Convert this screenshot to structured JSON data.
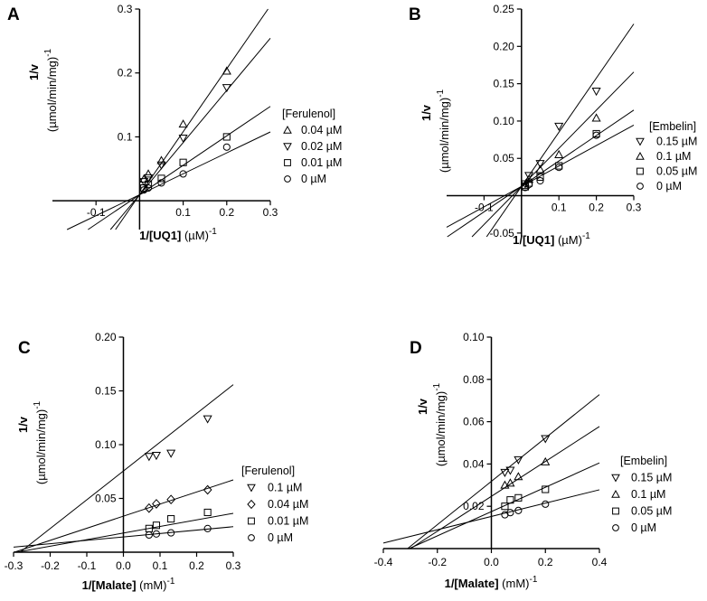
{
  "chart_data": [
    {
      "panel": "A",
      "type": "scatter",
      "xlabel_bold": "1/[UQ1]",
      "xlabel_rest": " (µM)",
      "xlabel_exp": "-1",
      "ylabel_top": "1/v",
      "ylabel_bottom": "(µmol/min/mg)",
      "ylabel_exp": "-1",
      "xlim": [
        -0.2,
        0.3
      ],
      "ylim": [
        -0.045,
        0.3
      ],
      "xticks": [
        -0.1,
        0.1,
        0.2,
        0.3
      ],
      "xtick_labels": [
        "-0.1",
        "0.1",
        "0.2",
        "0.3"
      ],
      "yticks": [
        0.1,
        0.2,
        0.3
      ],
      "ytick_labels": [
        "0.1",
        "0.2",
        "0.3"
      ],
      "legend_title": "[Ferulenol]",
      "series": [
        {
          "name": "0.04 µM",
          "marker": "triangle-up",
          "x": [
            0.01,
            0.02,
            0.05,
            0.1,
            0.2
          ],
          "y": [
            0.034,
            0.042,
            0.063,
            0.12,
            0.203
          ],
          "line": [
            0.9855,
            0.0095
          ]
        },
        {
          "name": "0.02 µM",
          "marker": "triangle-down",
          "x": [
            0.01,
            0.02,
            0.05,
            0.1,
            0.2
          ],
          "y": [
            0.03,
            0.036,
            0.056,
            0.098,
            0.177
          ],
          "line": [
            0.816,
            0.0095
          ]
        },
        {
          "name": "0.01 µM",
          "marker": "square",
          "x": [
            0.01,
            0.02,
            0.05,
            0.1,
            0.2
          ],
          "y": [
            0.02,
            0.026,
            0.035,
            0.06,
            0.1
          ],
          "line": [
            0.4605,
            0.0095
          ]
        },
        {
          "name": "0 µM",
          "marker": "circle",
          "x": [
            0.01,
            0.02,
            0.05,
            0.1,
            0.2
          ],
          "y": [
            0.017,
            0.02,
            0.028,
            0.042,
            0.084
          ],
          "line": [
            0.3274,
            0.0095
          ]
        }
      ]
    },
    {
      "panel": "B",
      "type": "scatter",
      "xlabel_bold": "1/[UQ1]",
      "xlabel_rest": " (µM)",
      "xlabel_exp": "-1",
      "ylabel_top": "1/v",
      "ylabel_bottom": "(µmol/min/mg)",
      "ylabel_exp": "-1",
      "xlim": [
        -0.2,
        0.3
      ],
      "ylim": [
        -0.055,
        0.25
      ],
      "xticks": [
        -0.1,
        0.1,
        0.2,
        0.3
      ],
      "xtick_labels": [
        "-0.1",
        "0.1",
        "0.2",
        "0.3"
      ],
      "yticks": [
        -0.05,
        0.05,
        0.1,
        0.15,
        0.2,
        0.25
      ],
      "ytick_labels": [
        "-0.05",
        "0.05",
        "0.10",
        "0.15",
        "0.20",
        "0.25"
      ],
      "legend_title": "[Embelin]",
      "series": [
        {
          "name": "0.15 µM",
          "marker": "triangle-down",
          "x": [
            0.01,
            0.02,
            0.05,
            0.1,
            0.2
          ],
          "y": [
            0.016,
            0.027,
            0.043,
            0.093,
            0.14
          ],
          "line": [
            0.725,
            0.0125
          ]
        },
        {
          "name": "0.1 µM",
          "marker": "triangle-up",
          "x": [
            0.01,
            0.02,
            0.05,
            0.1,
            0.2
          ],
          "y": [
            0.014,
            0.022,
            0.035,
            0.055,
            0.104
          ],
          "line": [
            0.5105,
            0.0125
          ]
        },
        {
          "name": "0.05 µM",
          "marker": "square",
          "x": [
            0.01,
            0.02,
            0.05,
            0.1,
            0.2
          ],
          "y": [
            0.012,
            0.017,
            0.025,
            0.04,
            0.083
          ],
          "line": [
            0.3405,
            0.0125
          ]
        },
        {
          "name": "0 µM",
          "marker": "circle",
          "x": [
            0.01,
            0.02,
            0.05,
            0.1,
            0.2
          ],
          "y": [
            0.011,
            0.015,
            0.02,
            0.038,
            0.081
          ],
          "line": [
            0.2735,
            0.0125
          ]
        }
      ]
    },
    {
      "panel": "C",
      "type": "scatter",
      "xlabel_bold": "1/[Malate]",
      "xlabel_rest": " (mM)",
      "xlabel_exp": "-1",
      "ylabel_top": "1/v",
      "ylabel_bottom": "(µmol/min/mg)",
      "ylabel_exp": "-1",
      "xlim": [
        -0.3,
        0.3
      ],
      "ylim": [
        0,
        0.2
      ],
      "xticks": [
        -0.3,
        -0.2,
        -0.1,
        0,
        0.1,
        0.2,
        0.3
      ],
      "xtick_labels": [
        "-0.3",
        "-0.2",
        "-0.1",
        "0.0",
        "0.1",
        "0.2",
        "0.3"
      ],
      "yticks": [
        0.05,
        0.1,
        0.15,
        0.2
      ],
      "ytick_labels": [
        "0.05",
        "0.10",
        "0.15",
        "0.20"
      ],
      "legend_title": "[Ferulenol]",
      "series": [
        {
          "name": "0.1 µM",
          "marker": "triangle-down",
          "x": [
            0.07,
            0.09,
            0.13,
            0.23
          ],
          "y": [
            0.089,
            0.09,
            0.092,
            0.124
          ],
          "line": [
            0.2675,
            0.0755
          ]
        },
        {
          "name": "0.04 µM",
          "marker": "diamond",
          "x": [
            0.07,
            0.09,
            0.13,
            0.23
          ],
          "y": [
            0.041,
            0.045,
            0.049,
            0.058
          ],
          "line": [
            0.1125,
            0.0335
          ]
        },
        {
          "name": "0.01 µM",
          "marker": "square",
          "x": [
            0.07,
            0.09,
            0.13,
            0.23
          ],
          "y": [
            0.022,
            0.025,
            0.031,
            0.037
          ],
          "line": [
            0.0611,
            0.0178
          ]
        },
        {
          "name": "0 µM",
          "marker": "circle",
          "x": [
            0.07,
            0.09,
            0.13,
            0.23
          ],
          "y": [
            0.016,
            0.017,
            0.018,
            0.022
          ],
          "line": [
            0.0317,
            0.0142
          ]
        }
      ]
    },
    {
      "panel": "D",
      "type": "scatter",
      "xlabel_bold": "1/[Malate]",
      "xlabel_rest": " (mM)",
      "xlabel_exp": "-1",
      "ylabel_top": "1/v",
      "ylabel_bottom": "(µmol/min/mg)",
      "ylabel_exp": "-1",
      "xlim": [
        -0.4,
        0.4
      ],
      "ylim": [
        0,
        0.1
      ],
      "xticks": [
        -0.4,
        -0.2,
        0,
        0.2,
        0.4
      ],
      "xtick_labels": [
        "-0.4",
        "-0.2",
        "0.0",
        "0.2",
        "0.4"
      ],
      "yticks": [
        0.02,
        0.04,
        0.06,
        0.08,
        0.1
      ],
      "ytick_labels": [
        "0.02",
        "0.04",
        "0.06",
        "0.08",
        "0.10"
      ],
      "legend_title": "[Embelin]",
      "series": [
        {
          "name": "0.15 µM",
          "marker": "triangle-down",
          "x": [
            0.05,
            0.07,
            0.1,
            0.2
          ],
          "y": [
            0.036,
            0.037,
            0.042,
            0.052
          ],
          "line": [
            0.1025,
            0.0318
          ]
        },
        {
          "name": "0.1 µM",
          "marker": "triangle-up",
          "x": [
            0.05,
            0.07,
            0.1,
            0.2
          ],
          "y": [
            0.03,
            0.031,
            0.034,
            0.041
          ],
          "line": [
            0.0825,
            0.0247
          ]
        },
        {
          "name": "0.05 µM",
          "marker": "square",
          "x": [
            0.05,
            0.07,
            0.1,
            0.2
          ],
          "y": [
            0.02,
            0.023,
            0.024,
            0.028
          ],
          "line": [
            0.0575,
            0.0175
          ]
        },
        {
          "name": "0 µM",
          "marker": "circle",
          "x": [
            0.05,
            0.07,
            0.1,
            0.2
          ],
          "y": [
            0.016,
            0.017,
            0.018,
            0.021
          ],
          "line": [
            0.0315,
            0.0152
          ]
        }
      ]
    }
  ]
}
